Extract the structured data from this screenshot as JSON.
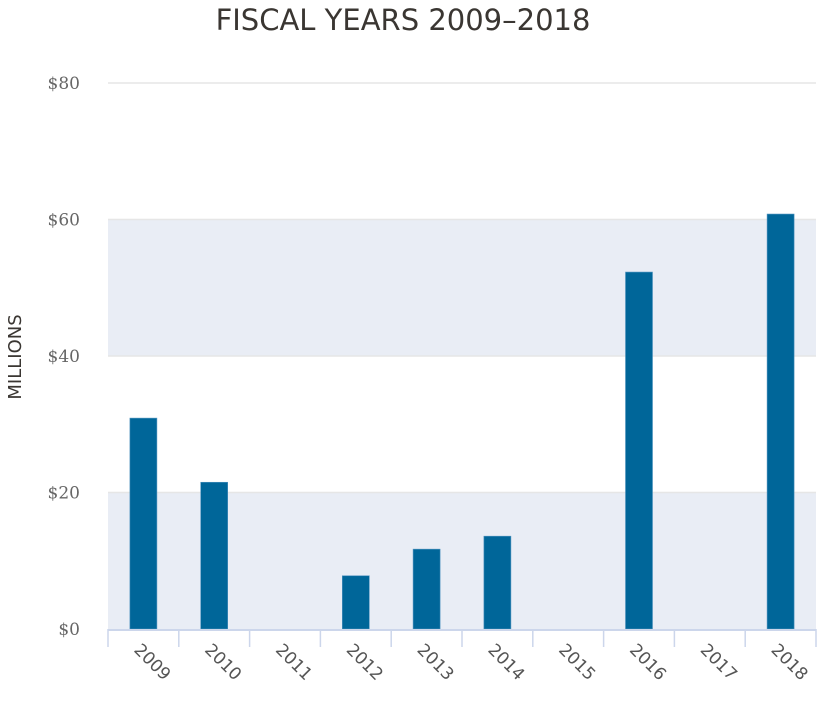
{
  "chart_data": {
    "type": "bar",
    "title": "FISCAL YEARS 2009–2018",
    "xlabel": "",
    "ylabel": "MILLIONS",
    "categories": [
      "2009",
      "2010",
      "2011",
      "2012",
      "2013",
      "2014",
      "2015",
      "2016",
      "2017",
      "2018"
    ],
    "values": [
      30.9,
      21.5,
      0,
      7.8,
      11.7,
      13.6,
      0,
      52.3,
      0,
      60.8
    ],
    "ylim": [
      0,
      80
    ],
    "yticks": [
      0,
      20,
      40,
      60,
      80
    ],
    "ytick_labels": [
      "$0",
      "$20",
      "$40",
      "$60",
      "$80"
    ],
    "grid": true,
    "alternate_bands": true,
    "legend": "none",
    "colors": {
      "bar": "#006699",
      "band": "#e9edf5",
      "gridline": "#e6e6e6",
      "axis": "#ccd6eb"
    }
  }
}
